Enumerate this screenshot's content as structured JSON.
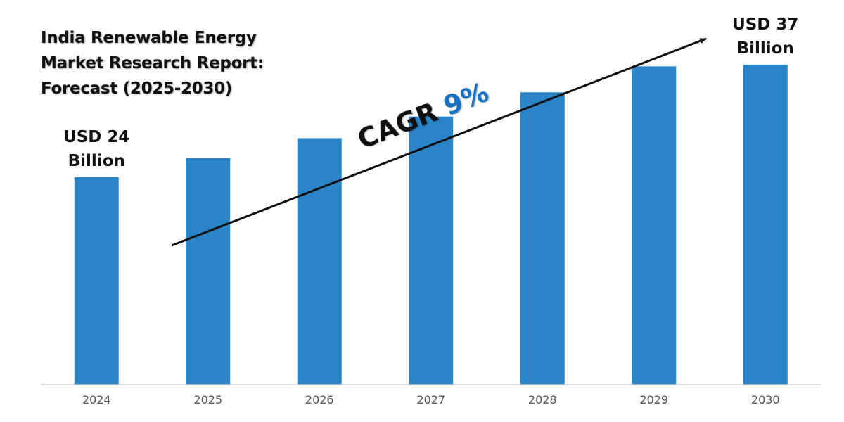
{
  "page_title": {
    "lines": [
      "India Renewable Energy",
      "Market Research Report:",
      "Forecast (2025-2030)"
    ]
  },
  "chart_data": {
    "type": "bar",
    "title": "India Renewable Energy Market Research Report: Forecast (2025-2030)",
    "categories": [
      "2024",
      "2025",
      "2026",
      "2027",
      "2028",
      "2029",
      "2030"
    ],
    "values": [
      24,
      26.2,
      28.5,
      31,
      33.8,
      36.8,
      37
    ],
    "estimated_values": [
      false,
      true,
      true,
      true,
      true,
      true,
      false
    ],
    "ylim": [
      0,
      40
    ],
    "xlabel": "",
    "ylabel": "",
    "grid": false,
    "bar_color": "#2a84c8",
    "axis_color": "#d0d0d0",
    "tick_color": "#555555",
    "annotations": {
      "start": {
        "category": "2024",
        "lines": [
          "USD 24",
          "Billion"
        ]
      },
      "end": {
        "category": "2030",
        "lines": [
          "USD 37",
          "Billion"
        ]
      },
      "cagr": {
        "prefix": "CAGR ",
        "value": "9%",
        "prefix_color": "#111111",
        "value_color": "#1a73c2"
      }
    }
  }
}
